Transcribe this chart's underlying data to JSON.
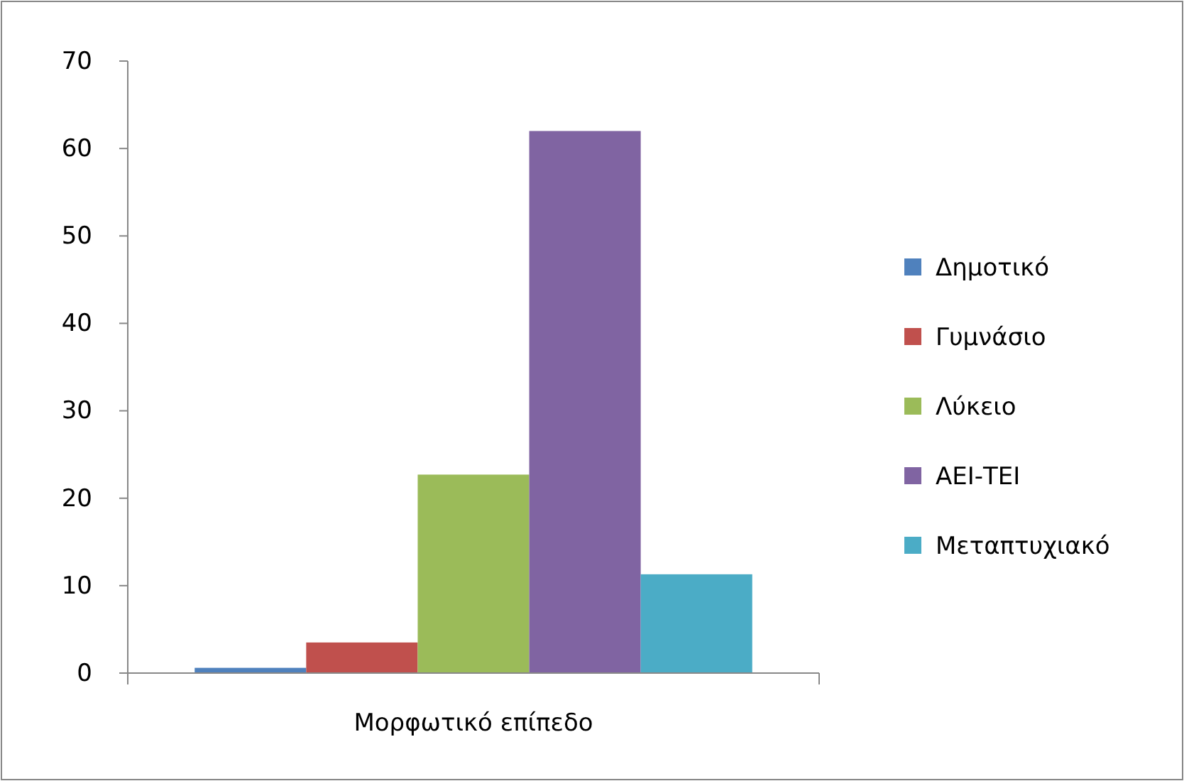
{
  "chart_data": {
    "type": "bar",
    "categories": [
      "Μορφωτικό επίπεδο"
    ],
    "series": [
      {
        "name": "Δημοτικό",
        "color": "#4f81bd",
        "values": [
          0.6
        ]
      },
      {
        "name": "Γυμνάσιο",
        "color": "#c0504d",
        "values": [
          3.5
        ]
      },
      {
        "name": "Λύκειο",
        "color": "#9bbb59",
        "values": [
          22.7
        ]
      },
      {
        "name": "ΑΕΙ-ΤΕΙ",
        "color": "#8064a2",
        "values": [
          62
        ]
      },
      {
        "name": "Μεταπτυχιακό",
        "color": "#4bacc6",
        "values": [
          11.3
        ]
      }
    ],
    "ylim": [
      0,
      70
    ],
    "yticks": [
      0,
      10,
      20,
      30,
      40,
      50,
      60,
      70
    ],
    "grid": false,
    "legend": "right"
  }
}
